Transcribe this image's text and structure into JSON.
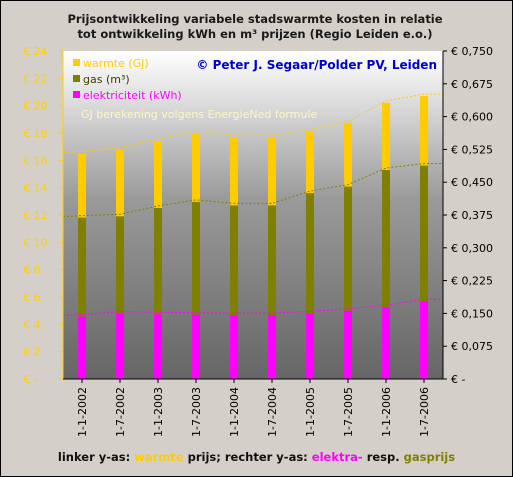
{
  "chart_data": {
    "type": "bar",
    "title": [
      "Prijsontwikkeling variabele stadswarmte kosten in relatie",
      "tot ontwikkeling kWh en m³ prijzen (Regio Leiden e.o.)"
    ],
    "credit": "© Peter J. Segaar/Polder PV, Leiden",
    "annotation": "GJ berekening volgens EnergieNed formule",
    "categories": [
      "1-1-2002",
      "1-7-2002",
      "1-1-2003",
      "1-7-2003",
      "1-1-2004",
      "1-7-2004",
      "1-1-2005",
      "1-7-2005",
      "1-1-2006",
      "1-7-2006"
    ],
    "y_left": {
      "ticks": [
        "€ -",
        "€ 2",
        "€ 4",
        "€ 6",
        "€ 8",
        "€ 10",
        "€ 12",
        "€ 14",
        "€ 16",
        "€ 18",
        "€ 20",
        "€ 22",
        "€ 24"
      ],
      "ylim": [
        0,
        24
      ]
    },
    "y_right": {
      "ticks": [
        "€ -",
        "€ 0,075",
        "€ 0,150",
        "€ 0,225",
        "€ 0,300",
        "€ 0,375",
        "€ 0,450",
        "€ 0,525",
        "€ 0,600",
        "€ 0,675",
        "€ 0,750"
      ],
      "ylim": [
        0,
        0.75
      ]
    },
    "series": [
      {
        "name": "warmte (GJ)",
        "axis": "left",
        "color": "#ffcc00",
        "values": [
          16.5,
          16.8,
          17.4,
          18.0,
          17.7,
          17.7,
          18.1,
          18.7,
          20.2,
          20.7
        ]
      },
      {
        "name": "gas (m³)",
        "axis": "right",
        "color": "#808000",
        "values": [
          0.369,
          0.372,
          0.391,
          0.405,
          0.397,
          0.397,
          0.425,
          0.44,
          0.478,
          0.488
        ]
      },
      {
        "name": "elektriciteit (kWh)",
        "axis": "right",
        "color": "#ff00ff",
        "values": [
          0.143,
          0.149,
          0.148,
          0.147,
          0.146,
          0.146,
          0.15,
          0.156,
          0.164,
          0.178
        ]
      }
    ],
    "grid": false,
    "legend": "top-left"
  },
  "footer": {
    "left": "linker y-as: ",
    "warmte": "warmte",
    "mid": " prijs; rechter y-as: ",
    "elektra": "elektra-",
    "resp": " resp. ",
    "gas": "gasprijs"
  }
}
